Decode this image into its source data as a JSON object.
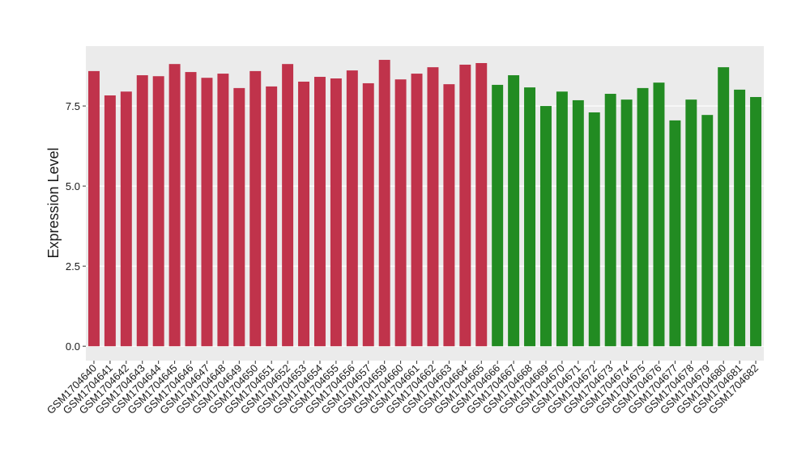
{
  "chart_data": {
    "type": "bar",
    "y_label": "Expression Level",
    "categories": [
      "GSM1704640",
      "GSM1704641",
      "GSM1704642",
      "GSM1704643",
      "GSM1704644",
      "GSM1704645",
      "GSM1704646",
      "GSM1704647",
      "GSM1704648",
      "GSM1704649",
      "GSM1704650",
      "GSM1704651",
      "GSM1704652",
      "GSM1704653",
      "GSM1704654",
      "GSM1704655",
      "GSM1704656",
      "GSM1704657",
      "GSM1704659",
      "GSM1704660",
      "GSM1704661",
      "GSM1704662",
      "GSM1704663",
      "GSM1704664",
      "GSM1704665",
      "GSM1704666",
      "GSM1704667",
      "GSM1704668",
      "GSM1704669",
      "GSM1704670",
      "GSM1704671",
      "GSM1704672",
      "GSM1704673",
      "GSM1704674",
      "GSM1704675",
      "GSM1704676",
      "GSM1704677",
      "GSM1704678",
      "GSM1704679",
      "GSM1704680",
      "GSM1704681",
      "GSM1704682"
    ],
    "values": [
      8.59,
      7.83,
      7.95,
      8.46,
      8.43,
      8.81,
      8.56,
      8.38,
      8.51,
      8.06,
      8.59,
      8.11,
      8.81,
      8.26,
      8.41,
      8.36,
      8.61,
      8.21,
      8.94,
      8.33,
      8.51,
      8.71,
      8.18,
      8.79,
      8.84,
      8.16,
      8.46,
      8.08,
      7.5,
      7.95,
      7.68,
      7.3,
      7.88,
      7.7,
      8.06,
      8.23,
      7.05,
      7.7,
      7.22,
      8.71,
      8.01,
      7.78
    ],
    "colors": [
      "#c0334b",
      "#c0334b",
      "#c0334b",
      "#c0334b",
      "#c0334b",
      "#c0334b",
      "#c0334b",
      "#c0334b",
      "#c0334b",
      "#c0334b",
      "#c0334b",
      "#c0334b",
      "#c0334b",
      "#c0334b",
      "#c0334b",
      "#c0334b",
      "#c0334b",
      "#c0334b",
      "#c0334b",
      "#c0334b",
      "#c0334b",
      "#c0334b",
      "#c0334b",
      "#c0334b",
      "#c0334b",
      "#228b22",
      "#228b22",
      "#228b22",
      "#228b22",
      "#228b22",
      "#228b22",
      "#228b22",
      "#228b22",
      "#228b22",
      "#228b22",
      "#228b22",
      "#228b22",
      "#228b22",
      "#228b22",
      "#228b22",
      "#228b22",
      "#228b22"
    ],
    "ylim": [
      -0.45,
      9.37
    ],
    "yticks": [
      {
        "value": 0,
        "label": "0.0"
      },
      2.5,
      {
        "value": 5,
        "label": "5.0"
      },
      7.5
    ],
    "grid": true
  }
}
